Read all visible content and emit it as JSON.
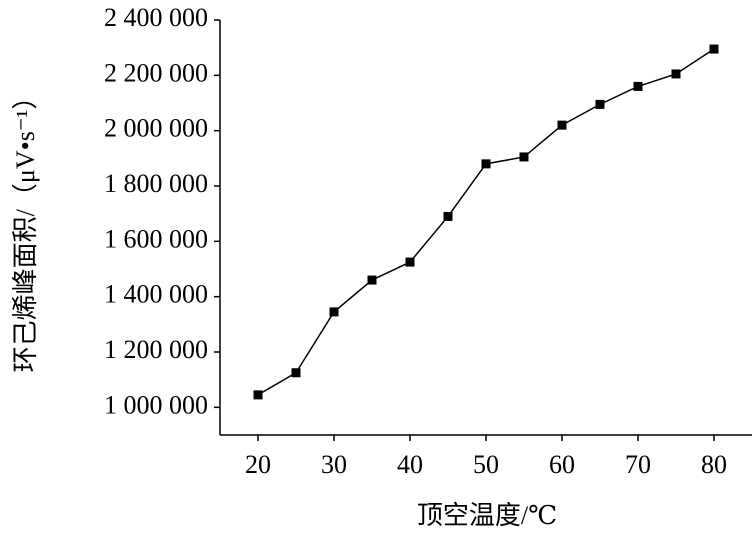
{
  "chart_data": {
    "type": "line",
    "x_label": "顶空温度/℃",
    "y_label": "环己烯峰面积/（μV•s⁻¹）",
    "x": [
      20,
      25,
      30,
      35,
      40,
      45,
      50,
      55,
      60,
      65,
      70,
      75,
      80
    ],
    "series": [
      {
        "color": "#000000",
        "values": [
          1045000,
          1125000,
          1345000,
          1460000,
          1525000,
          1690000,
          1880000,
          1905000,
          2020000,
          2095000,
          2160000,
          2205000,
          2295000
        ]
      }
    ],
    "xlim": [
      15,
      85
    ],
    "xticks": [
      20,
      30,
      40,
      50,
      60,
      70,
      80
    ],
    "ylim": [
      900000,
      2400000
    ],
    "yticks": [
      {
        "value": 1000000,
        "label": "1 000 000"
      },
      {
        "value": 1200000,
        "label": "1 200 000"
      },
      {
        "value": 1400000,
        "label": "1 400 000"
      },
      {
        "value": 1600000,
        "label": "1 600 000"
      },
      {
        "value": 1800000,
        "label": "1 800 000"
      },
      {
        "value": 2000000,
        "label": "2 000 000"
      },
      {
        "value": 2200000,
        "label": "2 200 000"
      },
      {
        "value": 2400000,
        "label": "2 400 000"
      }
    ],
    "grid": false
  }
}
